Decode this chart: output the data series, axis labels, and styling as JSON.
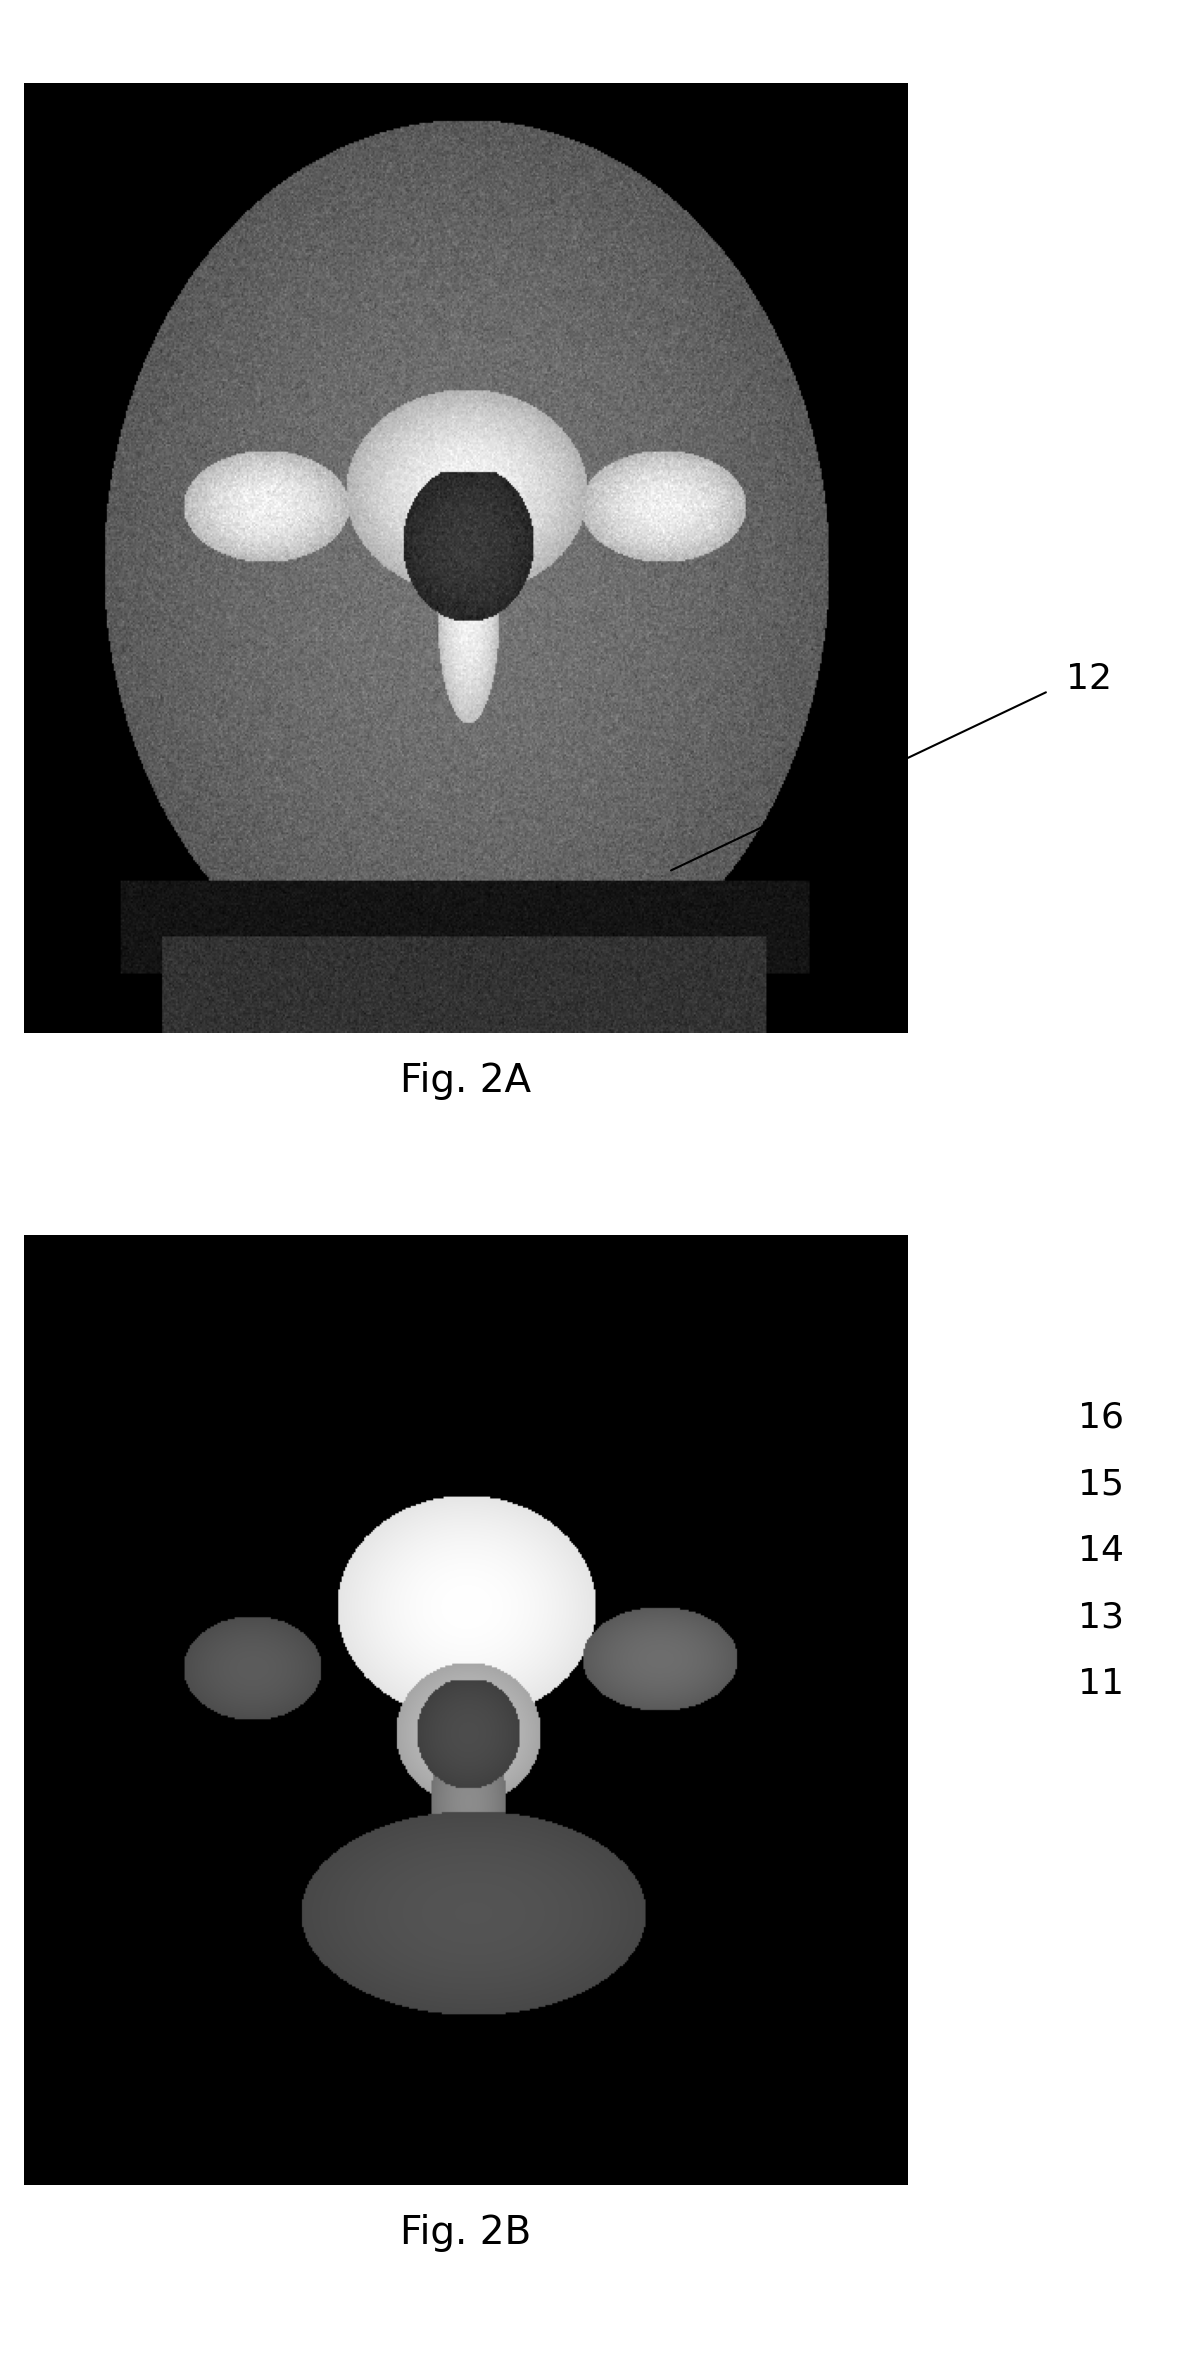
{
  "fig_width": 11.78,
  "fig_height": 23.75,
  "background_color": "#ffffff",
  "fig2a_label": "Fig. 2A",
  "fig2b_label": "Fig. 2B",
  "label_fontsize": 28,
  "annotation_fontsize": 26,
  "annotation_color": "#000000",
  "line_color_2a": "#000000",
  "line_color_2b": "#ffffff",
  "ref_num_2a": "12",
  "ref_nums_2b": [
    "16",
    "15",
    "14",
    "13",
    "11"
  ],
  "img2a_xlim": [
    0,
    1
  ],
  "img2a_ylim": [
    0,
    1
  ],
  "img2b_xlim": [
    0,
    1
  ],
  "img2b_ylim": [
    0,
    1
  ]
}
